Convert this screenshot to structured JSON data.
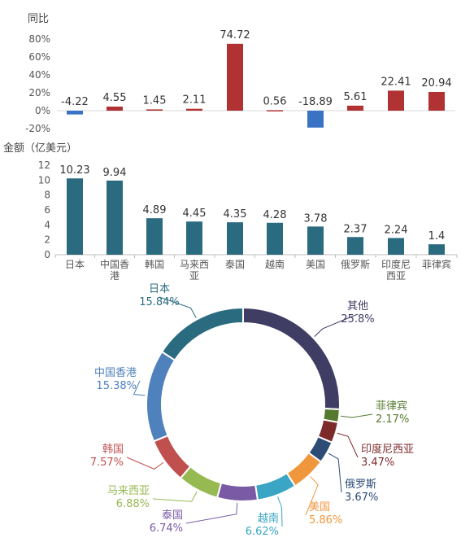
{
  "chart_data": [
    {
      "type": "bar",
      "ylabel": "同比",
      "tick_labels": [
        "80%",
        "60%",
        "40%",
        "20%",
        "0%",
        "-20%"
      ],
      "ylim": [
        -20,
        80
      ],
      "categories": [
        "日本",
        "中国香港",
        "韩国",
        "马来西亚",
        "泰国",
        "越南",
        "美国",
        "俄罗斯",
        "印度尼西亚",
        "菲律宾"
      ],
      "values": [
        -4.22,
        4.55,
        1.45,
        2.11,
        74.72,
        0.56,
        -18.89,
        5.61,
        22.41,
        20.94
      ],
      "value_labels": [
        "-4.22",
        "4.55",
        "1.45",
        "2.11",
        "74.72",
        "0.56",
        "-18.89",
        "5.61",
        "22.41",
        "20.94"
      ],
      "colors": {
        "positive": "#b03232",
        "negative": "#3a72c4"
      }
    },
    {
      "type": "bar",
      "ylabel": "金额（亿美元）",
      "tick_labels": [
        "12",
        "10",
        "8",
        "6",
        "4",
        "2",
        "0"
      ],
      "ylim": [
        0,
        12
      ],
      "categories": [
        "日本",
        "中国香港",
        "韩国",
        "马来西亚",
        "泰国",
        "越南",
        "美国",
        "俄罗斯",
        "印度尼西亚",
        "菲律宾"
      ],
      "category_lines": [
        [
          "日本"
        ],
        [
          "中国香",
          "港"
        ],
        [
          "韩国"
        ],
        [
          "马来西",
          "亚"
        ],
        [
          "泰国"
        ],
        [
          "越南"
        ],
        [
          "美国"
        ],
        [
          "俄罗斯"
        ],
        [
          "印度尼",
          "西亚"
        ],
        [
          "菲律宾"
        ]
      ],
      "values": [
        10.23,
        9.94,
        4.89,
        4.45,
        4.35,
        4.28,
        3.78,
        2.37,
        2.24,
        1.4
      ],
      "value_labels": [
        "10.23",
        "9.94",
        "4.89",
        "4.45",
        "4.35",
        "4.28",
        "3.78",
        "2.37",
        "2.24",
        "1.4"
      ],
      "color": "#2a6b80"
    },
    {
      "type": "pie",
      "style": "donut",
      "slices": [
        {
          "name": "其他",
          "pct_label": "25.8%",
          "value": 25.8,
          "color": "#3f3d64"
        },
        {
          "name": "菲律宾",
          "pct_label": "2.17%",
          "value": 2.17,
          "color": "#557a2e"
        },
        {
          "name": "印度尼西亚",
          "pct_label": "3.47%",
          "value": 3.47,
          "color": "#7c2a2a"
        },
        {
          "name": "俄罗斯",
          "pct_label": "3.67%",
          "value": 3.67,
          "color": "#2c4b75"
        },
        {
          "name": "美国",
          "pct_label": "5.86%",
          "value": 5.86,
          "color": "#f0963c"
        },
        {
          "name": "越南",
          "pct_label": "6.62%",
          "value": 6.62,
          "color": "#3aa5c4"
        },
        {
          "name": "泰国",
          "pct_label": "6.74%",
          "value": 6.74,
          "color": "#7a5aa5"
        },
        {
          "name": "马来西亚",
          "pct_label": "6.88%",
          "value": 6.88,
          "color": "#96b952"
        },
        {
          "name": "韩国",
          "pct_label": "7.57%",
          "value": 7.57,
          "color": "#c0504d"
        },
        {
          "name": "中国香港",
          "pct_label": "15.38%",
          "value": 15.38,
          "color": "#4f81bd"
        },
        {
          "name": "日本",
          "pct_label": "15.84%",
          "value": 15.84,
          "color": "#2a6b80"
        }
      ]
    }
  ]
}
